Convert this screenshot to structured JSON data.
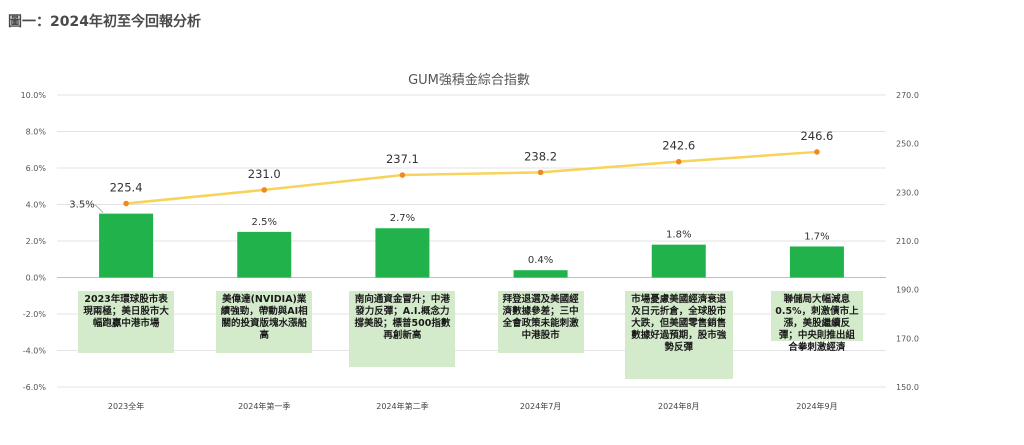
{
  "header": {
    "title": "圖一：2024年初至今回報分析"
  },
  "chart_data": {
    "type": "bar",
    "title": "GUM強積金綜合指數",
    "categories": [
      "2023全年",
      "2024年第一季",
      "2024年第二季",
      "2024年7月",
      "2024年8月",
      "2024年9月"
    ],
    "bar_series": {
      "values": [
        3.5,
        2.5,
        2.7,
        0.4,
        1.8,
        1.7
      ],
      "labels": [
        "3.5%",
        "2.5%",
        "2.7%",
        "0.4%",
        "1.8%",
        "1.7%"
      ],
      "color": "#22b24c"
    },
    "line_series": {
      "values": [
        225.4,
        231.0,
        237.1,
        238.2,
        242.6,
        246.6
      ],
      "labels": [
        "225.4",
        "231.0",
        "237.1",
        "238.2",
        "242.6",
        "246.6"
      ],
      "color": "#f7d35a",
      "marker_color": "#f08a1e"
    },
    "y_left": {
      "min": -6,
      "max": 10,
      "ticks": [
        "-6.0%",
        "-4.0%",
        "-2.0%",
        "0.0%",
        "2.0%",
        "4.0%",
        "6.0%",
        "8.0%",
        "10.0%"
      ]
    },
    "y_right": {
      "min": 150,
      "max": 270,
      "ticks": [
        "150.0",
        "170.0",
        "190.0",
        "210.0",
        "230.0",
        "250.0",
        "270.0"
      ]
    },
    "grid": true,
    "annotations": [
      "2023年環球股市表現兩極；美日股市大幅跑贏中港市場",
      "美偉達(NVIDIA)業績強勁，帶動與AI相關的投資版塊水漲船高",
      "南向通資金冒升；中港發力反彈；A.I.概念力撐美股；標普500指數再創新高",
      "拜登退選及美國經濟數據參差；三中全會政策未能刺激中港股市",
      "市場憂慮美國經濟衰退及日元折倉，全球股市大跌，但美國零售銷售數據好過預期，股市強勢反彈",
      "聯儲局大幅減息0.5%，刺激債市上漲，美股繼續反彈；中央則推出組合拳刺激經濟"
    ]
  }
}
